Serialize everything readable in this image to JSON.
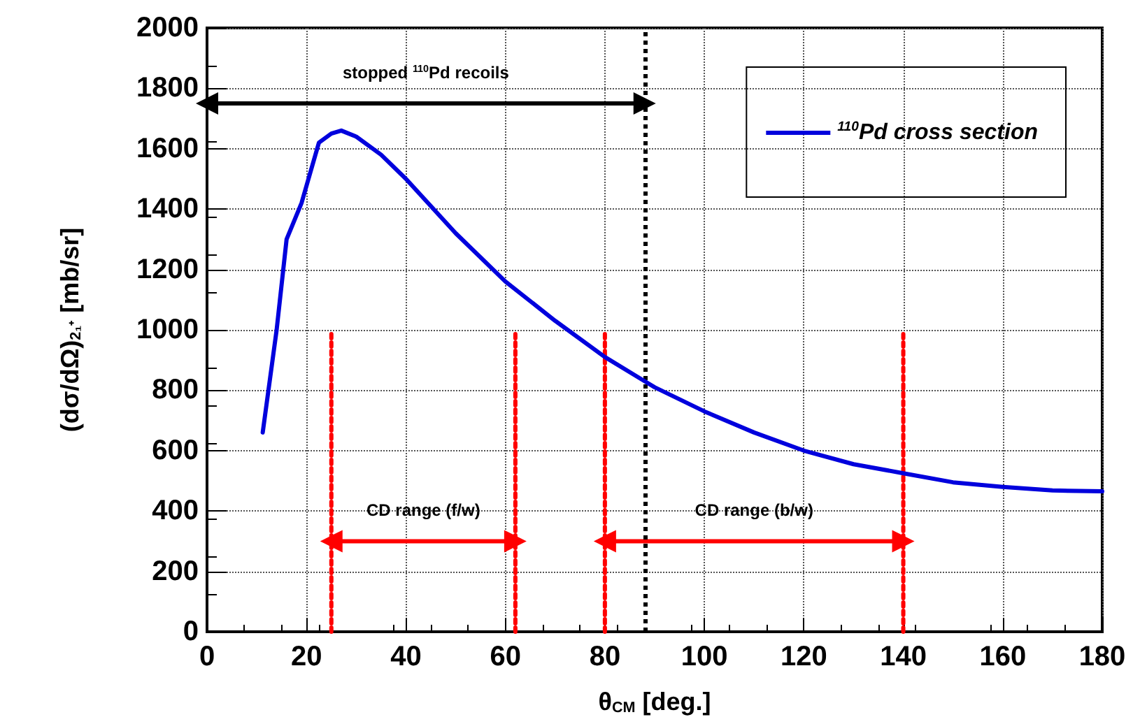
{
  "chart_data": {
    "type": "line",
    "xlabel": "θ$_{CM}$ [deg.]",
    "ylabel": "(dσ/dΩ)$_{2₁⁺}$ [mb/sr]",
    "x": [
      11.2,
      14,
      16,
      19,
      22.5,
      25,
      27,
      30,
      35,
      40,
      50,
      60,
      70,
      80,
      88,
      90,
      100,
      110,
      120,
      130,
      140,
      150,
      160,
      170,
      180
    ],
    "series": [
      {
        "name": "$^{110}$Pd cross section",
        "color": "#0000dd",
        "values": [
          660,
          1000,
          1300,
          1420,
          1620,
          1650,
          1660,
          1640,
          1580,
          1500,
          1320,
          1160,
          1030,
          910,
          830,
          810,
          730,
          660,
          600,
          555,
          525,
          495,
          480,
          468,
          465
        ]
      },
      {
        "color": "#000000",
        "x": [
          0,
          88
        ],
        "values": [
          1750,
          1750
        ],
        "marker": "triangle"
      },
      {
        "color": "#ff0000",
        "x": [
          25,
          62
        ],
        "values": [
          300,
          300
        ],
        "marker": "triangle"
      },
      {
        "color": "#ff0000",
        "x": [
          80,
          140
        ],
        "values": [
          300,
          300
        ],
        "marker": "triangle"
      },
      {
        "color": "#ff0000",
        "x": [
          25,
          25
        ],
        "values": [
          0,
          1000
        ],
        "line_style": "dotted"
      },
      {
        "color": "#ff0000",
        "x": [
          62,
          62
        ],
        "values": [
          0,
          1000
        ],
        "line_style": "dotted"
      },
      {
        "color": "#ff0000",
        "x": [
          80,
          80
        ],
        "values": [
          0,
          1000
        ],
        "line_style": "dotted"
      },
      {
        "color": "#ff0000",
        "x": [
          140,
          140
        ],
        "values": [
          0,
          1000
        ],
        "line_style": "dotted"
      }
    ],
    "xlim": [
      0,
      180
    ],
    "xticks": [
      0,
      20,
      40,
      60,
      80,
      100,
      120,
      140,
      160,
      180
    ],
    "ylim": [
      0,
      2000
    ],
    "yticks": [
      0,
      200,
      400,
      600,
      800,
      1000,
      1200,
      1400,
      1600,
      1800,
      2000
    ],
    "grid": true,
    "legend": "top right",
    "marker": "none",
    "line_style": "solid",
    "ref_lines": [
      {
        "axis": "x",
        "value": 88,
        "color": "#000000",
        "line_style": "dotted"
      }
    ],
    "annotations": [
      "stopped $^{110}$Pd recoils",
      "CD range (f/w)",
      "CD range (b/w)"
    ]
  }
}
